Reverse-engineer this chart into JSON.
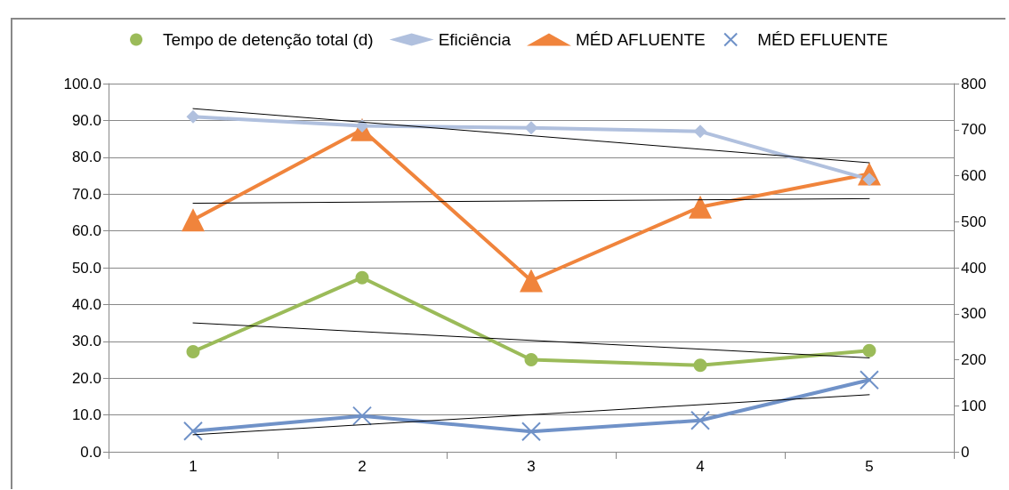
{
  "chart_data": {
    "type": "line",
    "categories": [
      "1",
      "2",
      "3",
      "4",
      "5"
    ],
    "series": [
      {
        "name": "Tempo de detenção total (d)",
        "color": "#9bbb59",
        "marker": "circle",
        "values": [
          27.2,
          47.3,
          25.0,
          23.5,
          27.5
        ]
      },
      {
        "name": "Eficiência",
        "color": "#b0c0de",
        "marker": "diamond",
        "values": [
          91.0,
          88.5,
          88.0,
          87.0,
          74.0
        ]
      },
      {
        "name": "MÉD AFLUENTE",
        "color": "#f0843c",
        "marker": "triangle",
        "axis": "y2",
        "values": [
          504,
          700,
          372,
          532,
          604
        ]
      },
      {
        "name": "MÉD EFLUENTE",
        "color": "#7092c8",
        "marker": "cross",
        "axis": "y2",
        "values": [
          45,
          78,
          44,
          68,
          156
        ]
      },
      {
        "type": "line",
        "color": "#000000",
        "marker": "none",
        "x": [
          "1",
          "5"
        ],
        "values": [
          35.0,
          25.5
        ]
      },
      {
        "type": "line",
        "color": "#000000",
        "marker": "none",
        "x": [
          "1",
          "5"
        ],
        "values": [
          93.2,
          78.5
        ]
      },
      {
        "type": "line",
        "color": "#000000",
        "marker": "none",
        "axis": "y2",
        "x": [
          "1",
          "5"
        ],
        "values": [
          540,
          550
        ]
      },
      {
        "type": "line",
        "color": "#000000",
        "marker": "none",
        "axis": "y2",
        "x": [
          "1",
          "5"
        ],
        "values": [
          37,
          124
        ]
      }
    ],
    "ylim": [
      0,
      100
    ],
    "yticks": [
      {
        "value": 0,
        "label": "0.0"
      },
      {
        "value": 10,
        "label": "10.0"
      },
      {
        "value": 20,
        "label": "20.0"
      },
      {
        "value": 30,
        "label": "30.0"
      },
      {
        "value": 40,
        "label": "40.0"
      },
      {
        "value": 50,
        "label": "50.0"
      },
      {
        "value": 60,
        "label": "60.0"
      },
      {
        "value": 70,
        "label": "70.0"
      },
      {
        "value": 80,
        "label": "80.0"
      },
      {
        "value": 90,
        "label": "90.0"
      },
      {
        "value": 100,
        "label": "100.0"
      }
    ],
    "y2lim": [
      0,
      800
    ],
    "y2ticks": [
      0,
      100,
      200,
      300,
      400,
      500,
      600,
      700,
      800
    ],
    "grid": "y",
    "legend": "top",
    "line_style": "solid"
  }
}
